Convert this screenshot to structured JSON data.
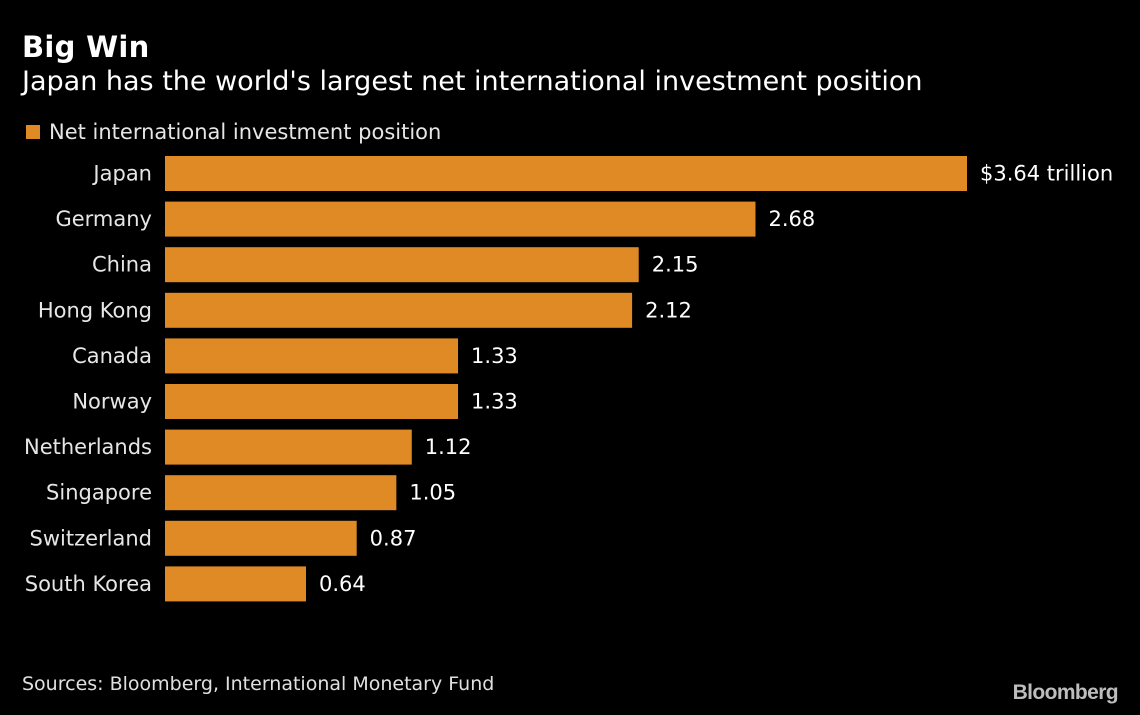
{
  "header": {
    "title": "Big Win",
    "subtitle": "Japan has the world's largest net international investment position"
  },
  "legend": {
    "label": "Net international investment position"
  },
  "colors": {
    "bar": "#E08A25",
    "background": "#000000",
    "text": "#FFFFFF"
  },
  "chart_data": {
    "type": "bar",
    "orientation": "horizontal",
    "categories": [
      "Japan",
      "Germany",
      "China",
      "Hong Kong",
      "Canada",
      "Norway",
      "Netherlands",
      "Singapore",
      "Switzerland",
      "South Korea"
    ],
    "series": [
      {
        "name": "Net international investment position",
        "values": [
          3.64,
          2.68,
          2.15,
          2.12,
          1.33,
          1.33,
          1.12,
          1.05,
          0.87,
          0.64
        ]
      }
    ],
    "data_labels": [
      "$3.64 trillion",
      "2.68",
      "2.15",
      "2.12",
      "1.33",
      "1.33",
      "1.12",
      "1.05",
      "0.87",
      "0.64"
    ],
    "legend_position": "top-left",
    "grid": false
  },
  "footer": {
    "source": "Sources: Bloomberg, International Monetary Fund",
    "brand": "Bloomberg"
  }
}
